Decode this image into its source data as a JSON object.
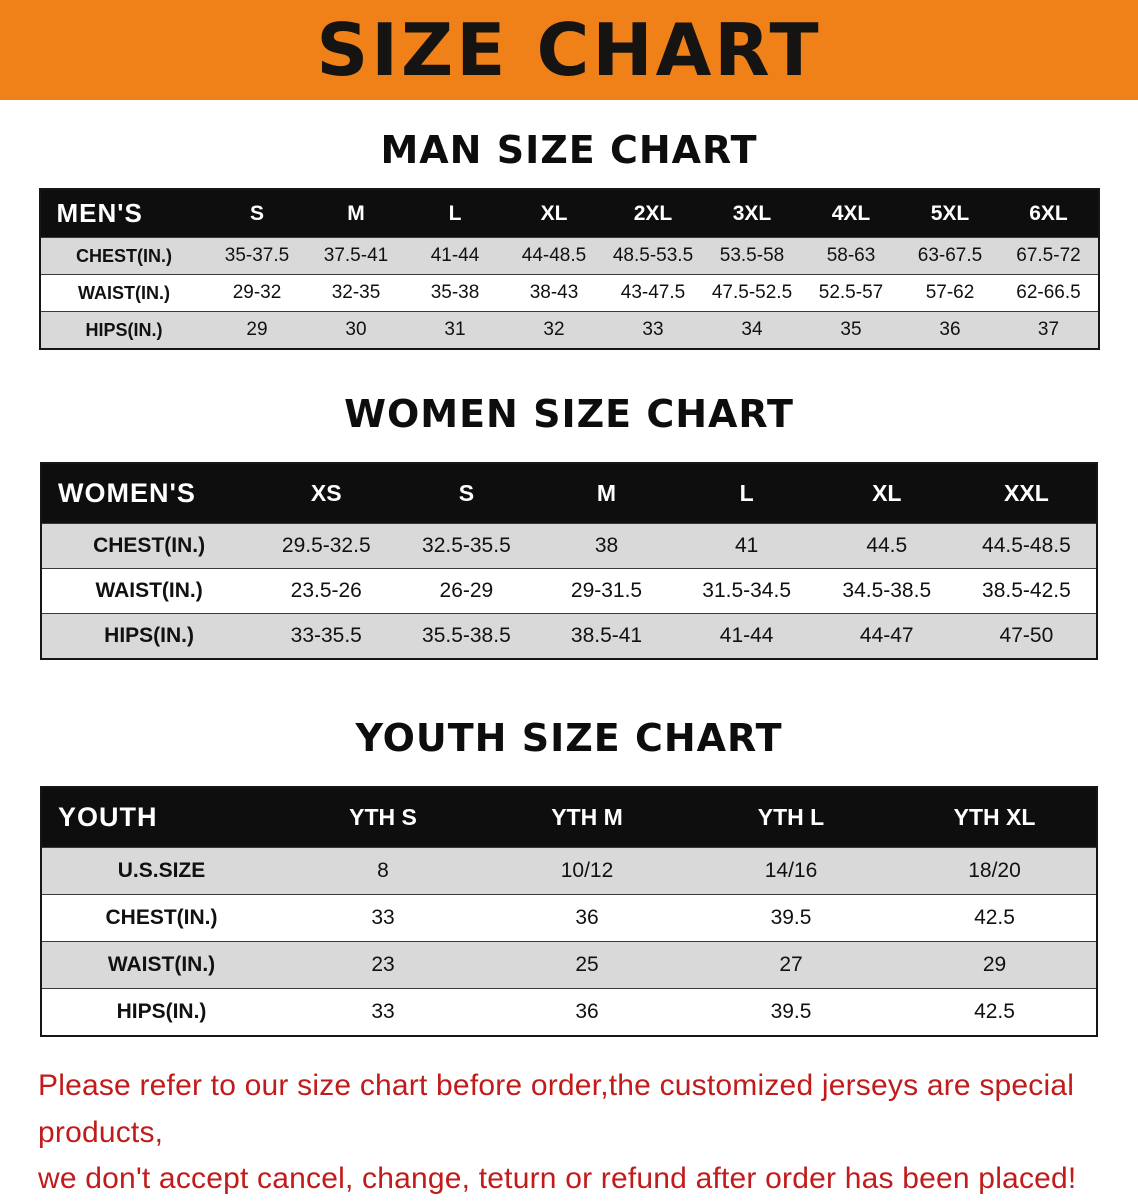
{
  "banner": {
    "title": "SIZE CHART"
  },
  "colors": {
    "banner_bg": "#F08018",
    "table_header_bg": "#0E0E0E",
    "table_header_text": "#FFFFFF",
    "row_shaded_bg": "#D9D9D9",
    "row_plain_bg": "#FFFFFF",
    "disclaimer_text": "#C11B1B"
  },
  "men": {
    "heading": "MAN SIZE CHART",
    "columns": [
      "MEN'S",
      "S",
      "M",
      "L",
      "XL",
      "2XL",
      "3XL",
      "4XL",
      "5XL",
      "6XL"
    ],
    "rows": [
      {
        "label": "CHEST(IN.)",
        "values": [
          "35-37.5",
          "37.5-41",
          "41-44",
          "44-48.5",
          "48.5-53.5",
          "53.5-58",
          "58-63",
          "63-67.5",
          "67.5-72"
        ]
      },
      {
        "label": "WAIST(IN.)",
        "values": [
          "29-32",
          "32-35",
          "35-38",
          "38-43",
          "43-47.5",
          "47.5-52.5",
          "52.5-57",
          "57-62",
          "62-66.5"
        ]
      },
      {
        "label": "HIPS(IN.)",
        "values": [
          "29",
          "30",
          "31",
          "32",
          "33",
          "34",
          "35",
          "36",
          "37"
        ]
      }
    ]
  },
  "women": {
    "heading": "WOMEN SIZE CHART",
    "columns": [
      "WOMEN'S",
      "XS",
      "S",
      "M",
      "L",
      "XL",
      "XXL"
    ],
    "rows": [
      {
        "label": "CHEST(IN.)",
        "values": [
          "29.5-32.5",
          "32.5-35.5",
          "38",
          "41",
          "44.5",
          "44.5-48.5"
        ]
      },
      {
        "label": "WAIST(IN.)",
        "values": [
          "23.5-26",
          "26-29",
          "29-31.5",
          "31.5-34.5",
          "34.5-38.5",
          "38.5-42.5"
        ]
      },
      {
        "label": "HIPS(IN.)",
        "values": [
          "33-35.5",
          "35.5-38.5",
          "38.5-41",
          "41-44",
          "44-47",
          "47-50"
        ]
      }
    ]
  },
  "youth": {
    "heading": "YOUTH SIZE CHART",
    "columns": [
      "YOUTH",
      "YTH S",
      "YTH M",
      "YTH L",
      "YTH XL"
    ],
    "rows": [
      {
        "label": "U.S.SIZE",
        "values": [
          "8",
          "10/12",
          "14/16",
          "18/20"
        ]
      },
      {
        "label": "CHEST(IN.)",
        "values": [
          "33",
          "36",
          "39.5",
          "42.5"
        ]
      },
      {
        "label": "WAIST(IN.)",
        "values": [
          "23",
          "25",
          "27",
          "29"
        ]
      },
      {
        "label": "HIPS(IN.)",
        "values": [
          "33",
          "36",
          "39.5",
          "42.5"
        ]
      }
    ]
  },
  "disclaimer": {
    "line1": "Please refer to our size chart before order,the customized jerseys are special products,",
    "line2": "we don't accept cancel, change, teturn or refund after order has been placed!"
  }
}
